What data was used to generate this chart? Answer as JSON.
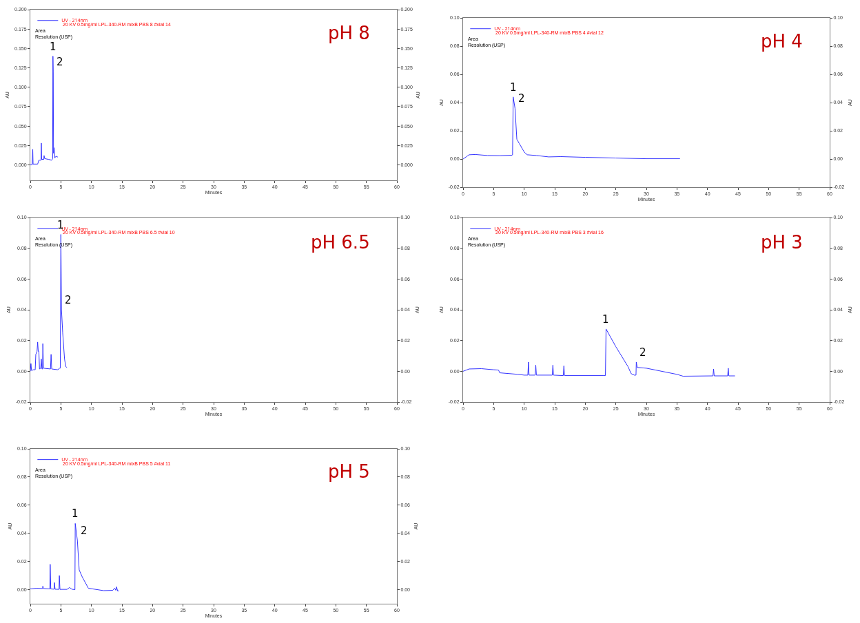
{
  "chart_data": [
    {
      "type": "line",
      "title": "pH 8",
      "xlabel": "Minutes",
      "ylabel": "AU",
      "y2label": "AU",
      "legend": "top left",
      "grid": false,
      "marker": "none",
      "x": [
        0,
        0.3,
        0.4,
        0.45,
        1.2,
        1.4,
        1.75,
        1.8,
        1.85,
        2.2,
        2.25,
        2.35,
        3.0,
        3.5,
        3.65,
        3.7,
        3.75,
        3.8,
        3.9,
        4.0,
        4.2,
        4.5
      ],
      "series": [
        {
          "name": "UV - 214nm",
          "color": "#3333ff",
          "values": [
            0,
            0,
            0.02,
            0.001,
            0.001,
            0.006,
            0.006,
            0.028,
            0.007,
            0.007,
            0.012,
            0.008,
            0.007,
            0.006,
            0.008,
            0.14,
            0.12,
            0.015,
            0.022,
            0.009,
            0.011,
            0.01
          ]
        }
      ],
      "xlim": [
        0,
        60
      ],
      "xticks": [
        0,
        5,
        10,
        15,
        20,
        25,
        30,
        35,
        40,
        45,
        50,
        55,
        60
      ],
      "ylim": [
        -0.02,
        0.2
      ],
      "yticks": [
        {
          "value": 0,
          "label": "0.000"
        },
        {
          "value": 0.025,
          "label": "0.025"
        },
        {
          "value": 0.05,
          "label": "0.050"
        },
        {
          "value": 0.075,
          "label": "0.075"
        },
        {
          "value": 0.1,
          "label": "0.100"
        },
        {
          "value": 0.125,
          "label": "0.125"
        },
        {
          "value": 0.15,
          "label": "0.150"
        },
        {
          "value": 0.175,
          "label": "0.175"
        },
        {
          "value": 0.2,
          "label": "0.200"
        }
      ],
      "y2lim": [
        -0.02,
        0.2
      ],
      "y2ticks": [
        {
          "value": 0,
          "label": "0.000"
        },
        {
          "value": 0.025,
          "label": "0.025"
        },
        {
          "value": 0.05,
          "label": "0.050"
        },
        {
          "value": 0.075,
          "label": "0.075"
        },
        {
          "value": 0.1,
          "label": "0.100"
        },
        {
          "value": 0.125,
          "label": "0.125"
        },
        {
          "value": 0.15,
          "label": "0.150"
        },
        {
          "value": 0.175,
          "label": "0.175"
        },
        {
          "value": 0.2,
          "label": "0.200"
        }
      ],
      "annotations": [
        "20 KV 0.5mg/ml LPL-340-RM mixB PBS 8 #vial 14",
        "Area",
        "Resolution (USP)",
        {
          "text": "1",
          "x": 3.7,
          "y": 0.14
        },
        {
          "text": "2",
          "x": 3.75,
          "y": 0.12
        }
      ]
    },
    {
      "type": "line",
      "title": "pH 4",
      "xlabel": "Minutes",
      "ylabel": "AU",
      "y2label": "AU",
      "legend": "top left",
      "grid": false,
      "marker": "none",
      "x": [
        0,
        0.5,
        1,
        2,
        4,
        6,
        8,
        8.1,
        8.2,
        8.5,
        8.8,
        9.2,
        10,
        10.5,
        12,
        14,
        16,
        20,
        25,
        30,
        35.5
      ],
      "series": [
        {
          "name": "UV - 214nm",
          "color": "#3333ff",
          "values": [
            0,
            0.0015,
            0.003,
            0.0032,
            0.0025,
            0.0024,
            0.0027,
            0.003,
            0.044,
            0.036,
            0.014,
            0.011,
            0.005,
            0.003,
            0.0025,
            0.0015,
            0.0017,
            0.0012,
            0.0007,
            0.0002,
            0.0002
          ]
        }
      ],
      "xlim": [
        0,
        60
      ],
      "xticks": [
        0,
        5,
        10,
        15,
        20,
        25,
        30,
        35,
        40,
        45,
        50,
        55,
        60
      ],
      "ylim": [
        -0.02,
        0.1
      ],
      "yticks": [
        {
          "value": -0.02,
          "label": "-0.02"
        },
        {
          "value": 0,
          "label": "0.00"
        },
        {
          "value": 0.02,
          "label": "0.02"
        },
        {
          "value": 0.04,
          "label": "0.04"
        },
        {
          "value": 0.06,
          "label": "0.06"
        },
        {
          "value": 0.08,
          "label": "0.08"
        },
        {
          "value": 0.1,
          "label": "0.10"
        }
      ],
      "y2lim": [
        -0.02,
        0.1
      ],
      "y2ticks": [
        {
          "value": -0.02,
          "label": "-0.02"
        },
        {
          "value": 0,
          "label": "0.00"
        },
        {
          "value": 0.02,
          "label": "0.02"
        },
        {
          "value": 0.04,
          "label": "0.04"
        },
        {
          "value": 0.06,
          "label": "0.06"
        },
        {
          "value": 0.08,
          "label": "0.08"
        },
        {
          "value": 0.1,
          "label": "0.10"
        }
      ],
      "annotations": [
        "20 KV 0.5mg/ml LPL-340-RM mixB PBS 4 #vial 12",
        "Area",
        "Resolution (USP)",
        {
          "text": "1",
          "x": 8.2,
          "y": 0.044
        },
        {
          "text": "2",
          "x": 8.5,
          "y": 0.036
        }
      ]
    },
    {
      "type": "line",
      "title": "pH 6.5",
      "xlabel": "Minutes",
      "ylabel": "AU",
      "y2label": "AU",
      "legend": "top left",
      "grid": false,
      "marker": "none",
      "x": [
        0,
        0.1,
        0.2,
        0.5,
        0.8,
        0.9,
        1.1,
        1.2,
        1.3,
        1.4,
        1.5,
        1.7,
        1.8,
        1.9,
        2.0,
        2.05,
        2.15,
        3.3,
        3.4,
        3.5,
        4.5,
        4.8,
        4.9,
        5.0,
        5.1,
        5.3,
        5.6,
        5.8,
        6.0
      ],
      "series": [
        {
          "name": "UV - 214nm",
          "color": "#3333ff",
          "values": [
            0,
            0.005,
            0.0005,
            0.001,
            0.001,
            0.011,
            0.013,
            0.019,
            0.013,
            0.013,
            0.0015,
            0.002,
            0.008,
            0.0015,
            0.0015,
            0.018,
            0.002,
            0.0015,
            0.011,
            0.0015,
            0.001,
            0.002,
            0.002,
            0.089,
            0.04,
            0.025,
            0.008,
            0.003,
            0.0025
          ]
        }
      ],
      "xlim": [
        0,
        60
      ],
      "xticks": [
        0,
        5,
        10,
        15,
        20,
        25,
        30,
        35,
        40,
        45,
        50,
        55,
        60
      ],
      "ylim": [
        -0.02,
        0.1
      ],
      "yticks": [
        {
          "value": -0.02,
          "label": "-0.02"
        },
        {
          "value": 0,
          "label": "0.00"
        },
        {
          "value": 0.02,
          "label": "0.02"
        },
        {
          "value": 0.04,
          "label": "0.04"
        },
        {
          "value": 0.06,
          "label": "0.06"
        },
        {
          "value": 0.08,
          "label": "0.08"
        },
        {
          "value": 0.1,
          "label": "0.10"
        }
      ],
      "y2lim": [
        -0.02,
        0.1
      ],
      "y2ticks": [
        {
          "value": -0.02,
          "label": "-0.02"
        },
        {
          "value": 0,
          "label": "0.00"
        },
        {
          "value": 0.02,
          "label": "0.02"
        },
        {
          "value": 0.04,
          "label": "0.04"
        },
        {
          "value": 0.06,
          "label": "0.06"
        },
        {
          "value": 0.08,
          "label": "0.08"
        },
        {
          "value": 0.1,
          "label": "0.10"
        }
      ],
      "annotations": [
        "20 KV 0.5mg/ml LPL-340-RM mixB PBS 6.5 #vial 10",
        "Area",
        "Resolution (USP)",
        {
          "text": "1",
          "x": 5.0,
          "y": 0.089
        },
        {
          "text": "2",
          "x": 5.1,
          "y": 0.04
        }
      ]
    },
    {
      "type": "line",
      "title": "pH 3",
      "xlabel": "Minutes",
      "ylabel": "AU",
      "y2label": "AU",
      "legend": "top left",
      "grid": false,
      "marker": "none",
      "x": [
        0,
        1,
        3,
        5,
        5.8,
        6,
        9,
        10,
        10.6,
        10.7,
        10.8,
        11.8,
        11.9,
        12,
        14.6,
        14.7,
        14.8,
        16.4,
        16.5,
        16.6,
        23,
        23.3,
        23.4,
        25,
        27,
        27.5,
        28,
        28.3,
        28.35,
        28.5,
        30,
        35,
        36,
        40.9,
        41,
        41.1,
        43.3,
        43.4,
        43.5,
        44.5
      ],
      "series": [
        {
          "name": "UV - 214nm",
          "color": "#3333ff",
          "values": [
            0,
            0.0015,
            0.0017,
            0.001,
            0.0008,
            -0.001,
            -0.002,
            -0.0025,
            -0.0025,
            0.006,
            -0.0025,
            -0.0025,
            0.004,
            -0.0025,
            -0.0025,
            0.004,
            -0.0025,
            -0.0028,
            0.0035,
            -0.0028,
            -0.0028,
            -0.0028,
            0.0275,
            0.016,
            0.003,
            -0.0015,
            -0.0025,
            -0.0025,
            0.006,
            0.0025,
            0.002,
            -0.002,
            -0.0032,
            -0.003,
            0.0015,
            -0.003,
            -0.003,
            0.002,
            -0.003,
            -0.003
          ]
        }
      ],
      "xlim": [
        0,
        60
      ],
      "xticks": [
        0,
        5,
        10,
        15,
        20,
        25,
        30,
        35,
        40,
        45,
        50,
        55,
        60
      ],
      "ylim": [
        -0.02,
        0.1
      ],
      "yticks": [
        {
          "value": -0.02,
          "label": "-0.02"
        },
        {
          "value": 0,
          "label": "0.00"
        },
        {
          "value": 0.02,
          "label": "0.02"
        },
        {
          "value": 0.04,
          "label": "0.04"
        },
        {
          "value": 0.06,
          "label": "0.06"
        },
        {
          "value": 0.08,
          "label": "0.08"
        },
        {
          "value": 0.1,
          "label": "0.10"
        }
      ],
      "y2lim": [
        -0.02,
        0.1
      ],
      "y2ticks": [
        {
          "value": -0.02,
          "label": "-0.02"
        },
        {
          "value": 0,
          "label": "0.00"
        },
        {
          "value": 0.02,
          "label": "0.02"
        },
        {
          "value": 0.04,
          "label": "0.04"
        },
        {
          "value": 0.06,
          "label": "0.06"
        },
        {
          "value": 0.08,
          "label": "0.08"
        },
        {
          "value": 0.1,
          "label": "0.10"
        }
      ],
      "annotations": [
        "20 KV 0.5mg/ml LPL-340-RM mixB PBS 3 #vial 16",
        "Area",
        "Resolution (USP)",
        {
          "text": "1",
          "x": 23.4,
          "y": 0.0275
        },
        {
          "text": "2",
          "x": 28.35,
          "y": 0.006
        }
      ]
    },
    {
      "type": "line",
      "title": "pH 5",
      "xlabel": "Minutes",
      "ylabel": "AU",
      "y2label": "AU",
      "legend": "top left",
      "grid": false,
      "marker": "none",
      "x": [
        0,
        1,
        2,
        2.05,
        2.15,
        3.2,
        3.25,
        3.35,
        3.9,
        3.95,
        4.05,
        4.7,
        4.75,
        4.85,
        6,
        6.4,
        6.8,
        7.3,
        7.35,
        7.7,
        8,
        8.5,
        9.5,
        12,
        13.5,
        13.8,
        14,
        14.1,
        14.3,
        14.5
      ],
      "series": [
        {
          "name": "UV - 214nm",
          "color": "#3333ff",
          "values": [
            0.0005,
            0.001,
            0.0008,
            0.0025,
            0.0008,
            0.0005,
            0.018,
            0.0005,
            0.0003,
            0.005,
            0.0003,
            0.0002,
            0.01,
            0.0002,
            0.0002,
            0.0015,
            0.0003,
            0,
            0.047,
            0.035,
            0.014,
            0.009,
            0.001,
            -0.0007,
            -0.0005,
            0.001,
            -0.0005,
            0.002,
            -0.001,
            -0.0008
          ]
        }
      ],
      "xlim": [
        0,
        60
      ],
      "xticks": [
        0,
        5,
        10,
        15,
        20,
        25,
        30,
        35,
        40,
        45,
        50,
        55,
        60
      ],
      "ylim": [
        -0.01,
        0.1
      ],
      "yticks": [
        {
          "value": 0,
          "label": "0.00"
        },
        {
          "value": 0.02,
          "label": "0.02"
        },
        {
          "value": 0.04,
          "label": "0.04"
        },
        {
          "value": 0.06,
          "label": "0.06"
        },
        {
          "value": 0.08,
          "label": "0.08"
        },
        {
          "value": 0.1,
          "label": "0.10"
        }
      ],
      "y2lim": [
        -0.01,
        0.1
      ],
      "y2ticks": [
        {
          "value": 0,
          "label": "0.00"
        },
        {
          "value": 0.02,
          "label": "0.02"
        },
        {
          "value": 0.04,
          "label": "0.04"
        },
        {
          "value": 0.06,
          "label": "0.06"
        },
        {
          "value": 0.08,
          "label": "0.08"
        },
        {
          "value": 0.1,
          "label": "0.10"
        }
      ],
      "annotations": [
        "20 KV 0.5mg/ml LPL-340-RM mixB PBS 5 #vial 11",
        "Area",
        "Resolution (USP)",
        {
          "text": "1",
          "x": 7.35,
          "y": 0.047
        },
        {
          "text": "2",
          "x": 7.7,
          "y": 0.035
        }
      ]
    }
  ]
}
